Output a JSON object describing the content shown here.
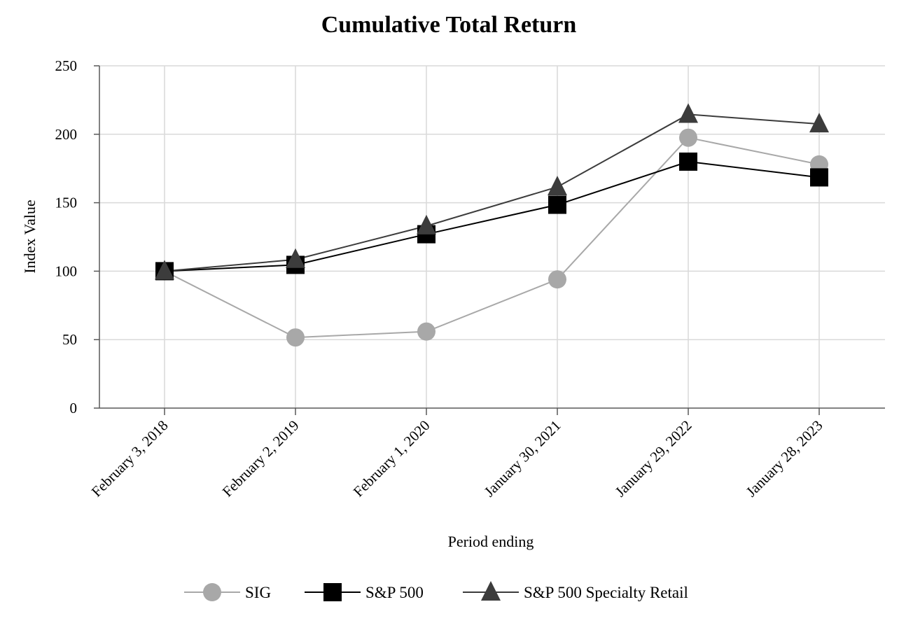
{
  "chart_data": {
    "type": "line",
    "title": "Cumulative Total Return",
    "xlabel": "Period ending",
    "ylabel": "Index Value",
    "categories": [
      "February 3, 2018",
      "February 2, 2019",
      "February 1, 2020",
      "January 30, 2021",
      "January 29, 2022",
      "January 28, 2023"
    ],
    "ylim": [
      0,
      250
    ],
    "yticks": [
      0,
      50,
      100,
      150,
      200,
      250
    ],
    "grid": true,
    "legend_position": "bottom",
    "series": [
      {
        "name": "SIG",
        "values": [
          100,
          51.6,
          55.9,
          94,
          197.5,
          178
        ],
        "color": "#a8a8a8",
        "marker": "circle"
      },
      {
        "name": "S&P 500",
        "values": [
          100,
          104.6,
          127,
          148.5,
          180,
          168.5
        ],
        "color": "#000000",
        "marker": "square"
      },
      {
        "name": "S&P 500 Specialty Retail",
        "values": [
          100,
          108.5,
          133,
          161.5,
          214.5,
          207.5
        ],
        "color": "#3c3c3c",
        "marker": "triangle"
      }
    ]
  }
}
